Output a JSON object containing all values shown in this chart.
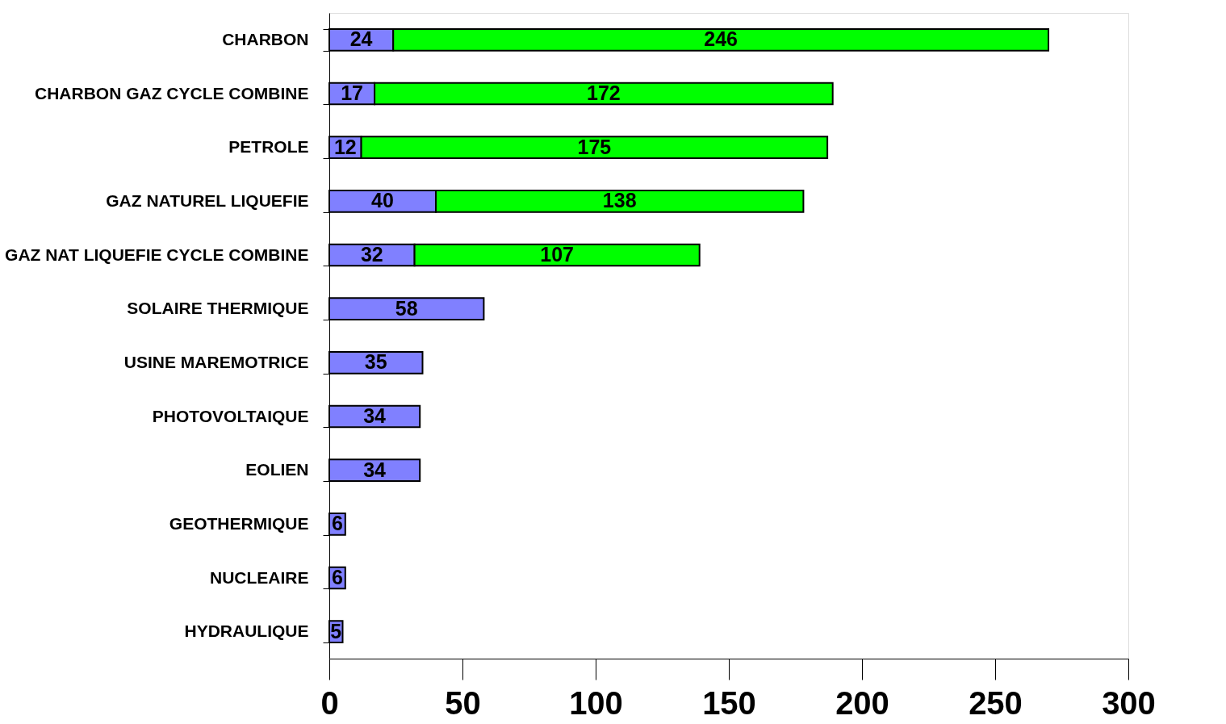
{
  "chart_data": {
    "type": "bar",
    "orientation": "horizontal",
    "stacked": true,
    "data_labels": true,
    "grid": false,
    "categories": [
      "CHARBON",
      "CHARBON GAZ CYCLE COMBINE",
      "PETROLE",
      "GAZ NATUREL LIQUEFIE",
      "GAZ NAT LIQUEFIE CYCLE COMBINE",
      "SOLAIRE THERMIQUE",
      "USINE MAREMOTRICE",
      "PHOTOVOLTAIQUE",
      "EOLIEN",
      "GEOTHERMIQUE",
      "NUCLEAIRE",
      "HYDRAULIQUE"
    ],
    "series": [
      {
        "color": "#8080ff",
        "values": [
          24,
          17,
          12,
          40,
          32,
          58,
          35,
          34,
          34,
          6,
          6,
          5
        ]
      },
      {
        "color": "#00ff00",
        "values": [
          246,
          172,
          175,
          138,
          107,
          null,
          null,
          null,
          null,
          null,
          null,
          null
        ]
      }
    ],
    "xlim": [
      0,
      300
    ],
    "xticks": [
      0,
      50,
      100,
      150,
      200,
      250,
      300
    ]
  }
}
